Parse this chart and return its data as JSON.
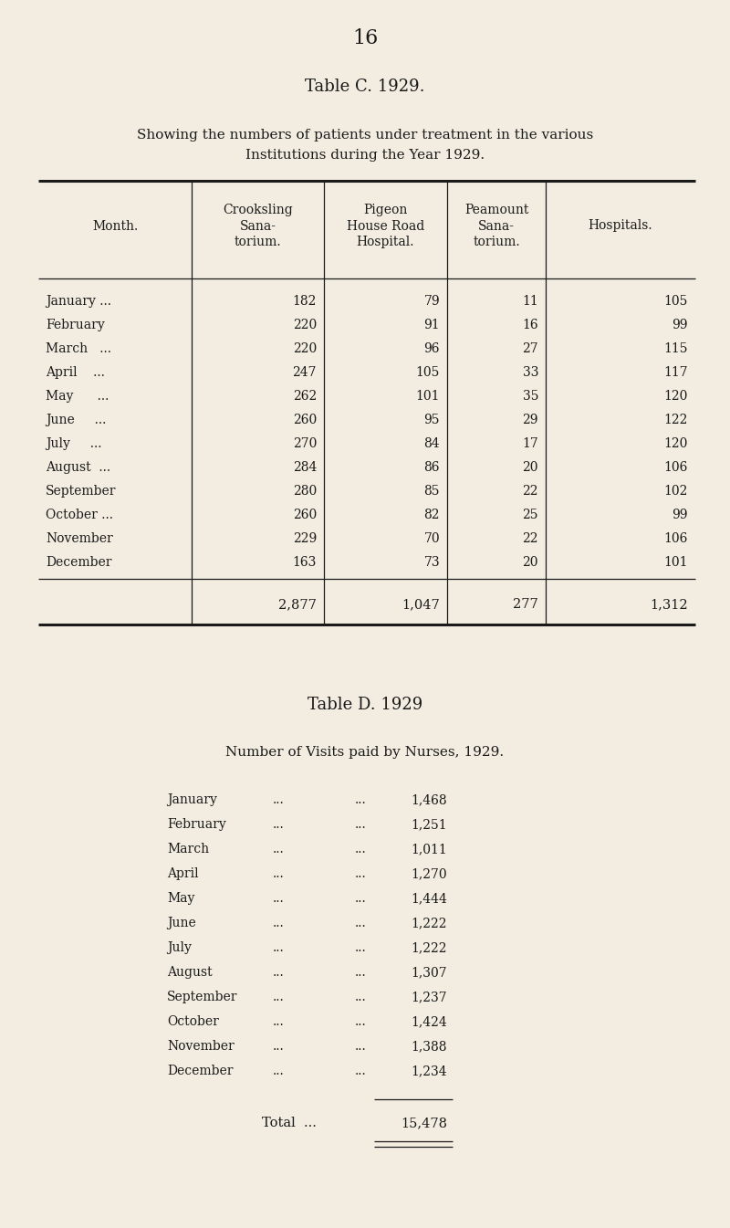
{
  "page_number": "16",
  "bg_color": "#f2ede0",
  "text_color": "#1a1a1a",
  "table_c_title": "Table C. 1929.",
  "table_c_subtitle1": "Showing the numbers of patients under treatment in the various",
  "table_c_subtitle2": "Institutions during the Year 1929.",
  "col_headers": [
    "Month.",
    "Crooksling\nSana-\ntorium.",
    "Pigeon\nHouse Road\nHospital.",
    "Peamount\nSana-\ntorium.",
    "Hospitals."
  ],
  "months": [
    "January ...",
    "February",
    "March   ...",
    "April    ...",
    "May      ...",
    "June     ...",
    "July     ...",
    "August  ...",
    "September",
    "October ...",
    "November",
    "December"
  ],
  "crooksling": [
    182,
    220,
    220,
    247,
    262,
    260,
    270,
    284,
    280,
    260,
    229,
    163
  ],
  "pigeon": [
    79,
    91,
    96,
    105,
    101,
    95,
    84,
    86,
    85,
    82,
    70,
    73
  ],
  "peamount": [
    11,
    16,
    27,
    33,
    35,
    29,
    17,
    20,
    22,
    25,
    22,
    20
  ],
  "hospitals": [
    105,
    99,
    115,
    117,
    120,
    122,
    120,
    106,
    102,
    99,
    106,
    101
  ],
  "totals": [
    "2,877",
    "1,047",
    "277",
    "1,312"
  ],
  "table_d_title": "Table D. 1929",
  "table_d_subtitle": "Number of Visits paid by Nurses, 1929.",
  "visit_months": [
    "January",
    "February",
    "March",
    "April",
    "May",
    "June",
    "July",
    "August",
    "September",
    "October",
    "November",
    "December"
  ],
  "visits": [
    "1,468",
    "1,251",
    "1,011",
    "1,270",
    "1,444",
    "1,222",
    "1,222",
    "1,307",
    "1,237",
    "1,424",
    "1,388",
    "1,234"
  ],
  "visits_total": "15,478"
}
